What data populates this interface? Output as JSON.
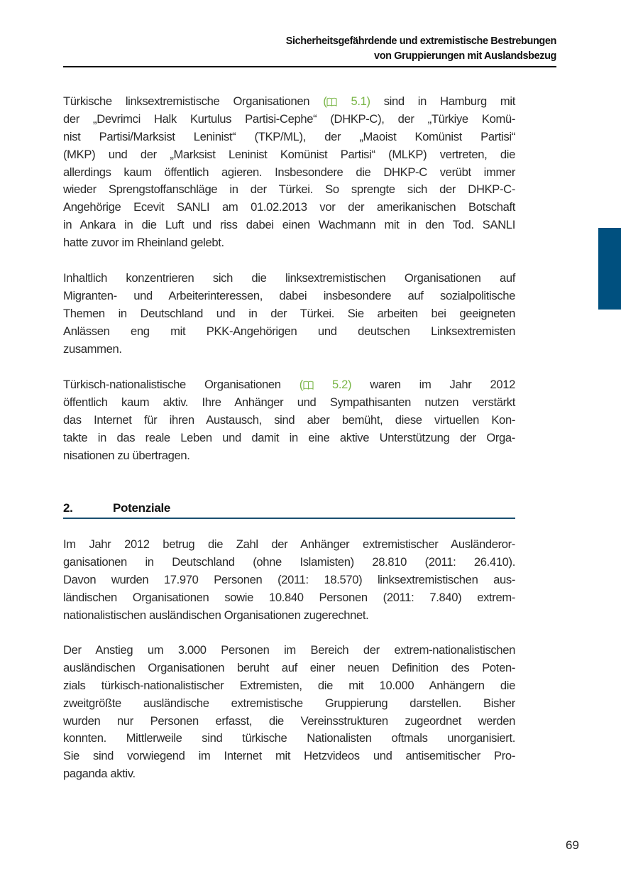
{
  "header": {
    "line1": "Sicherheitsgefährdende und extremistische Bestrebungen",
    "line2": "von Gruppierungen mit Auslandsbezug"
  },
  "colors": {
    "accent_tab": "#00507f",
    "reference_link": "#7ab648",
    "heading_rule": "#1a4f70"
  },
  "paragraphs": [
    {
      "lines": [
        {
          "pre": "Türkische linksextremistische Organisationen ",
          "ref": "5.1)",
          "ref_open": "(",
          "icon": "book-icon",
          "post": " sind in Hamburg mit"
        },
        "der „Devrimci Halk Kurtulus Partisi-Cephe“ (DHKP-C), der „Türkiye Komü-",
        "nist Partisi/Marksist Leninist“ (TKP/ML), der „Maoist Komünist Partisi“",
        "(MKP) und der „Marksist Leninist Komünist Partisi“ (MLKP) vertreten, die",
        "allerdings kaum öffentlich agieren. Insbesondere die DHKP-C verübt immer",
        "wieder Sprengstoffanschläge in der Türkei. So sprengte sich der DHKP-C-",
        "Angehörige Ecevit SANLI am 01.02.2013 vor der amerikanischen Botschaft",
        "in Ankara in die Luft und riss dabei einen Wachmann mit in den Tod. SANLI",
        "hatte zuvor im Rheinland gelebt."
      ]
    },
    {
      "lines": [
        "Inhaltlich konzentrieren sich die linksextremistischen Organisationen auf",
        "Migranten- und Arbeiterinteressen, dabei insbesondere auf sozialpolitische",
        "Themen in Deutschland und in der Türkei. Sie arbeiten bei geeigneten",
        "Anlässen eng mit PKK-Angehörigen und deutschen Linksextremisten",
        "zusammen."
      ]
    },
    {
      "lines": [
        {
          "pre": "Türkisch-nationalistische Organisationen ",
          "ref": "5.2)",
          "ref_open": "(",
          "icon": "book-icon",
          "post": " waren im Jahr 2012"
        },
        "öffentlich kaum aktiv. Ihre Anhänger und Sympathisanten nutzen verstärkt",
        "das Internet für ihren Austausch, sind aber bemüht, diese virtuellen Kon-",
        "takte in das reale Leben und damit in eine aktive Unterstützung der Orga-",
        "nisationen zu übertragen."
      ]
    },
    {
      "lines": [
        "Im Jahr 2012 betrug die Zahl der Anhänger extremistischer Ausländeror-",
        "ganisationen in Deutschland (ohne Islamisten) 28.810 (2011: 26.410).",
        "Davon wurden 17.970 Personen (2011: 18.570) linksextremistischen aus-",
        "ländischen Organisationen sowie 10.840 Personen (2011: 7.840) extrem-",
        "nationalistischen ausländischen Organisationen zugerechnet."
      ]
    },
    {
      "lines": [
        "Der Anstieg um 3.000 Personen im Bereich der extrem-nationalistischen",
        "ausländischen Organisationen beruht auf einer neuen Definition des Poten-",
        "zials türkisch-nationalistischer Extremisten, die mit 10.000 Anhängern die",
        "zweitgrößte ausländische extremistische Gruppierung darstellen. Bisher",
        "wurden nur Personen erfasst, die Vereinsstrukturen zugeordnet werden",
        "konnten. Mittlerweile sind türkische Nationalisten oftmals unorganisiert.",
        "Sie sind vorwiegend im Internet mit Hetzvideos und antisemitischer Pro-",
        "paganda aktiv."
      ]
    }
  ],
  "section": {
    "number": "2.",
    "title": "Potenziale"
  },
  "page_number": "69"
}
